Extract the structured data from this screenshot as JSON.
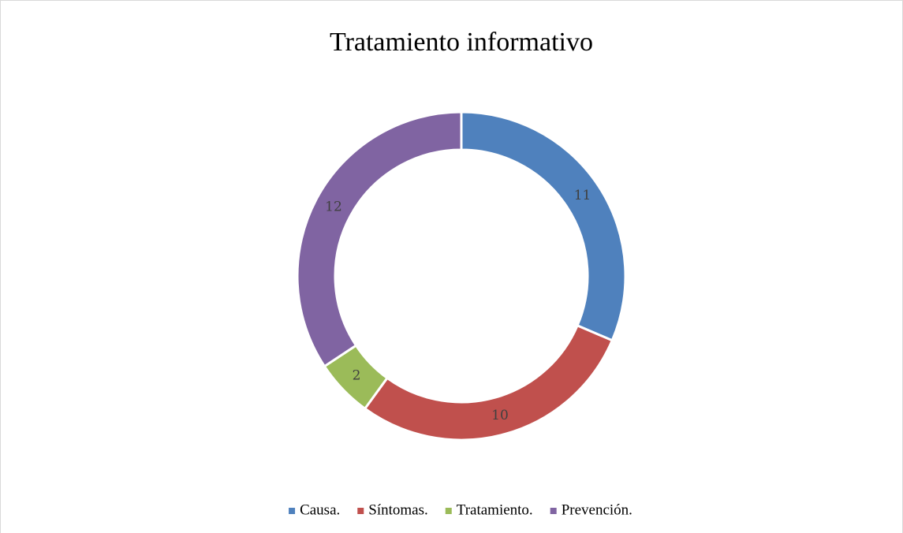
{
  "chart_data": {
    "type": "donut",
    "title": "Tratamiento informativo",
    "categories": [
      "Causa.",
      "Síntomas.",
      "Tratamiento.",
      "Prevención."
    ],
    "values": [
      11,
      10,
      2,
      12
    ],
    "colors": [
      "#4f81bd",
      "#c0504d",
      "#9bbb59",
      "#8064a2"
    ],
    "legend": "bottom"
  }
}
